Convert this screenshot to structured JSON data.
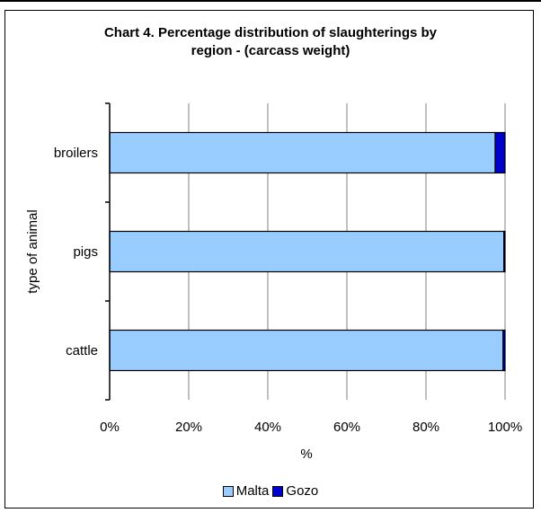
{
  "chart_data": {
    "type": "bar",
    "orientation": "horizontal",
    "stacked": "percent",
    "title_lines": [
      "Chart 4.  Percentage distribution of slaughterings by",
      "region - (carcass weight)"
    ],
    "categories": [
      "broilers",
      "pigs",
      "cattle"
    ],
    "series": [
      {
        "name": "Malta",
        "color": "#99ccff",
        "values": [
          97.5,
          99.7,
          99.5
        ]
      },
      {
        "name": "Gozo",
        "color": "#0000cc",
        "values": [
          2.5,
          0.3,
          0.5
        ]
      }
    ],
    "xlabel": "%",
    "ylabel": "type of animal",
    "xlim": [
      0,
      100
    ],
    "xticks": [
      "0%",
      "20%",
      "40%",
      "60%",
      "80%",
      "100%"
    ],
    "grid": true,
    "legend": "bottom"
  }
}
